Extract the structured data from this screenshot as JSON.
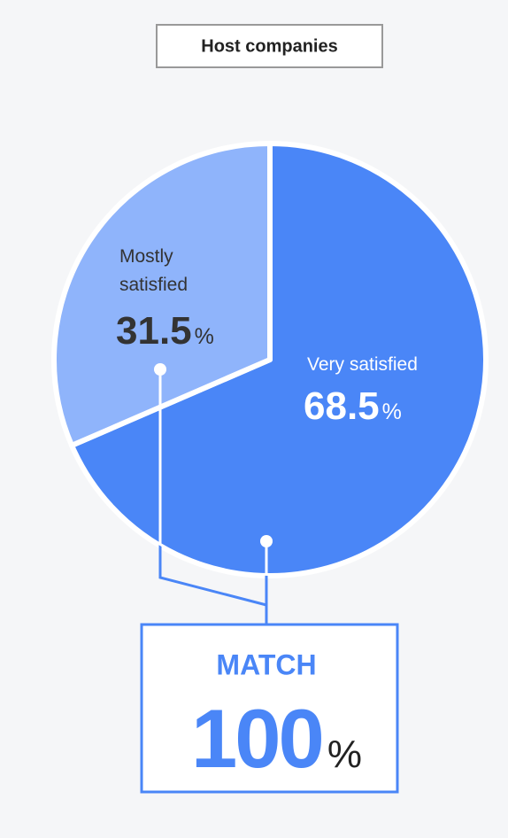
{
  "chart_data": {
    "type": "pie",
    "title": "Host companies",
    "categories": [
      "Very satisfied",
      "Mostly satisfied"
    ],
    "values": [
      68.5,
      31.5
    ],
    "colors": [
      "#4a86f7",
      "#8fb4fb"
    ],
    "unit": "%",
    "total_label": "MATCH",
    "total": 100
  }
}
